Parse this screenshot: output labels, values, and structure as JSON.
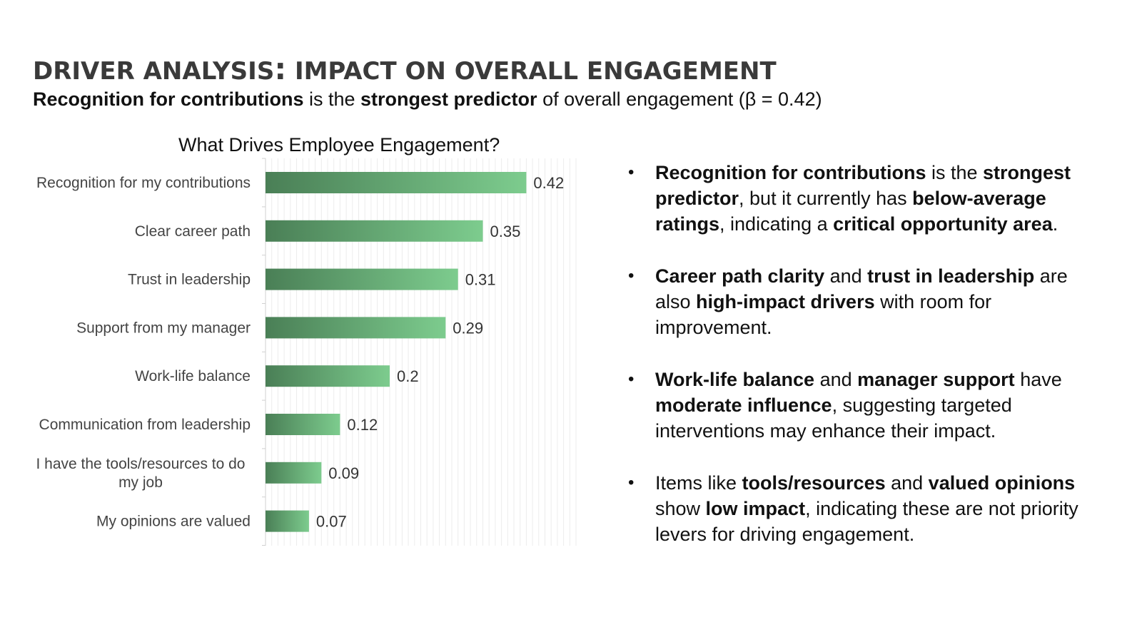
{
  "slide": {
    "title_part1": "DRIVER ANALYSIS",
    "title_colon": ":",
    "title_part2": " IMPACT ON OVERALL ENGAGEMENT",
    "subtitle": {
      "s1": "Recognition for contributions",
      "s2": " is the ",
      "s3": "strongest predictor",
      "s4": " of overall engagement (β = 0.42)"
    }
  },
  "chart_data": {
    "type": "bar",
    "orientation": "horizontal",
    "title": "What Drives Employee Engagement?",
    "categories": [
      "Recognition for my contributions",
      "Clear career path",
      "Trust in leadership",
      "Support from my manager",
      "Work-life balance",
      "Communication from leadership",
      "I have the tools/resources to do my job",
      "My opinions are valued"
    ],
    "values": [
      0.42,
      0.35,
      0.31,
      0.29,
      0.2,
      0.12,
      0.09,
      0.07
    ],
    "labels": [
      "0.42",
      "0.35",
      "0.31",
      "0.29",
      "0.2",
      "0.12",
      "0.09",
      "0.07"
    ],
    "xlim": [
      0,
      0.5
    ],
    "grid": true,
    "bar_color_dark": "#4a7f56",
    "bar_color_light": "#7dcc8e"
  },
  "bullets": [
    {
      "parts": [
        {
          "t": "Recognition for contributions",
          "b": true
        },
        {
          "t": " is the ",
          "b": false
        },
        {
          "t": "strongest predictor",
          "b": true
        },
        {
          "t": ", but it currently has ",
          "b": false
        },
        {
          "t": "below-average ratings",
          "b": true
        },
        {
          "t": ", indicating a ",
          "b": false
        },
        {
          "t": "critical opportunity area",
          "b": true
        },
        {
          "t": ".",
          "b": false
        }
      ]
    },
    {
      "parts": [
        {
          "t": "Career path clarity",
          "b": true
        },
        {
          "t": " and ",
          "b": false
        },
        {
          "t": "trust in leadership",
          "b": true
        },
        {
          "t": " are also ",
          "b": false
        },
        {
          "t": "high-impact drivers",
          "b": true
        },
        {
          "t": " with room for improvement.",
          "b": false
        }
      ]
    },
    {
      "parts": [
        {
          "t": "Work-life balance",
          "b": true
        },
        {
          "t": " and ",
          "b": false
        },
        {
          "t": "manager support",
          "b": true
        },
        {
          "t": " have ",
          "b": false
        },
        {
          "t": "moderate influence",
          "b": true
        },
        {
          "t": ", suggesting targeted interventions may enhance their impact.",
          "b": false
        }
      ]
    },
    {
      "parts": [
        {
          "t": "Items like ",
          "b": false
        },
        {
          "t": "tools/resources",
          "b": true
        },
        {
          "t": " and ",
          "b": false
        },
        {
          "t": "valued opinions",
          "b": true
        },
        {
          "t": " show ",
          "b": false
        },
        {
          "t": "low impact",
          "b": true
        },
        {
          "t": ", indicating these are not priority levers for driving engagement.",
          "b": false
        }
      ]
    }
  ]
}
